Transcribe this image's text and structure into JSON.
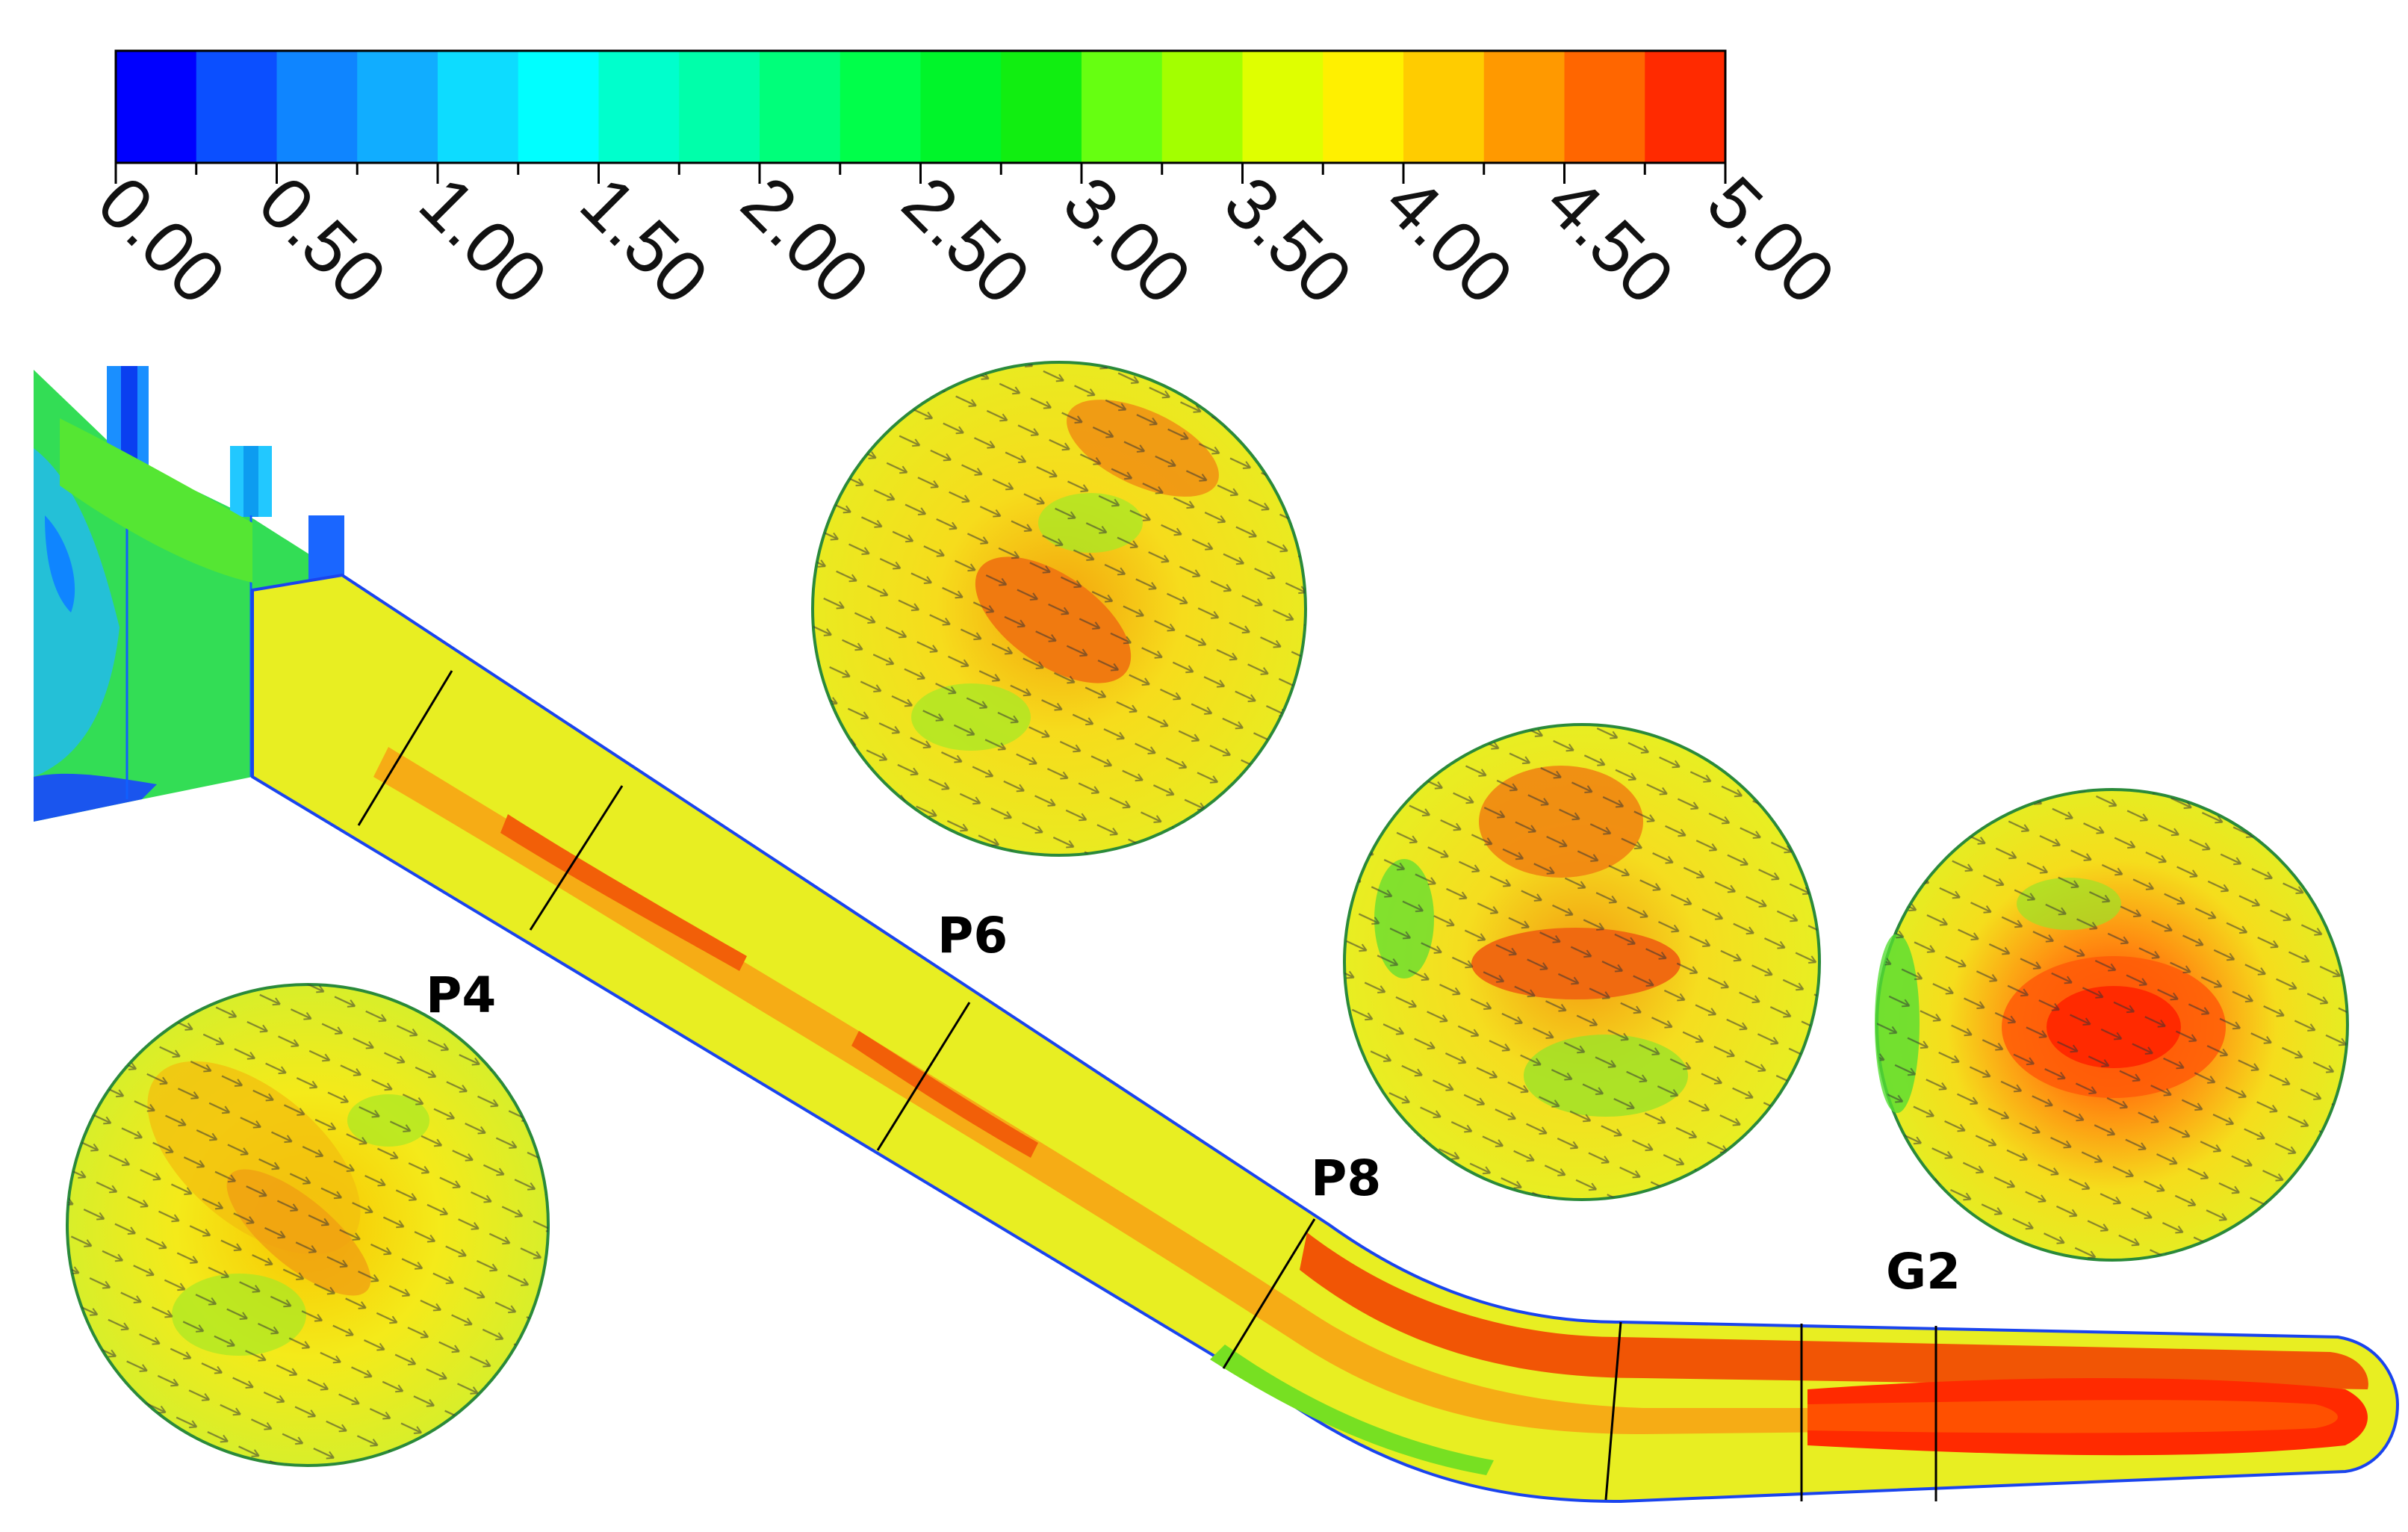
{
  "colorbar": {
    "ticks": [
      "0.00",
      "0.50",
      "1.00",
      "1.50",
      "2.00",
      "2.50",
      "3.00",
      "3.50",
      "4.00",
      "4.50",
      "5.00"
    ],
    "range": [
      0,
      5
    ],
    "band_count": 20,
    "colors": [
      "#0000ff",
      "#0b4fff",
      "#0f85ff",
      "#11adff",
      "#0ddcff",
      "#00ffff",
      "#00ffcc",
      "#00ffaa",
      "#00ff7a",
      "#00ff4a",
      "#00f52a",
      "#11ee11",
      "#66ff11",
      "#a3ff00",
      "#dfff00",
      "#fff000",
      "#ffcc00",
      "#ff9900",
      "#ff6600",
      "#ff2a00"
    ]
  },
  "labels": {
    "p4": "P4",
    "p6": "P6",
    "p8": "P8",
    "g2": "G2"
  },
  "cross_sections": [
    {
      "name": "P4",
      "core_level": 4.3,
      "core_angle": 45
    },
    {
      "name": "P6",
      "core_level": 4.6,
      "core_angle": 30
    },
    {
      "name": "P8",
      "core_level": 4.7,
      "core_angle": 0
    },
    {
      "name": "G2",
      "core_level": 4.95,
      "core_angle": 0
    }
  ]
}
